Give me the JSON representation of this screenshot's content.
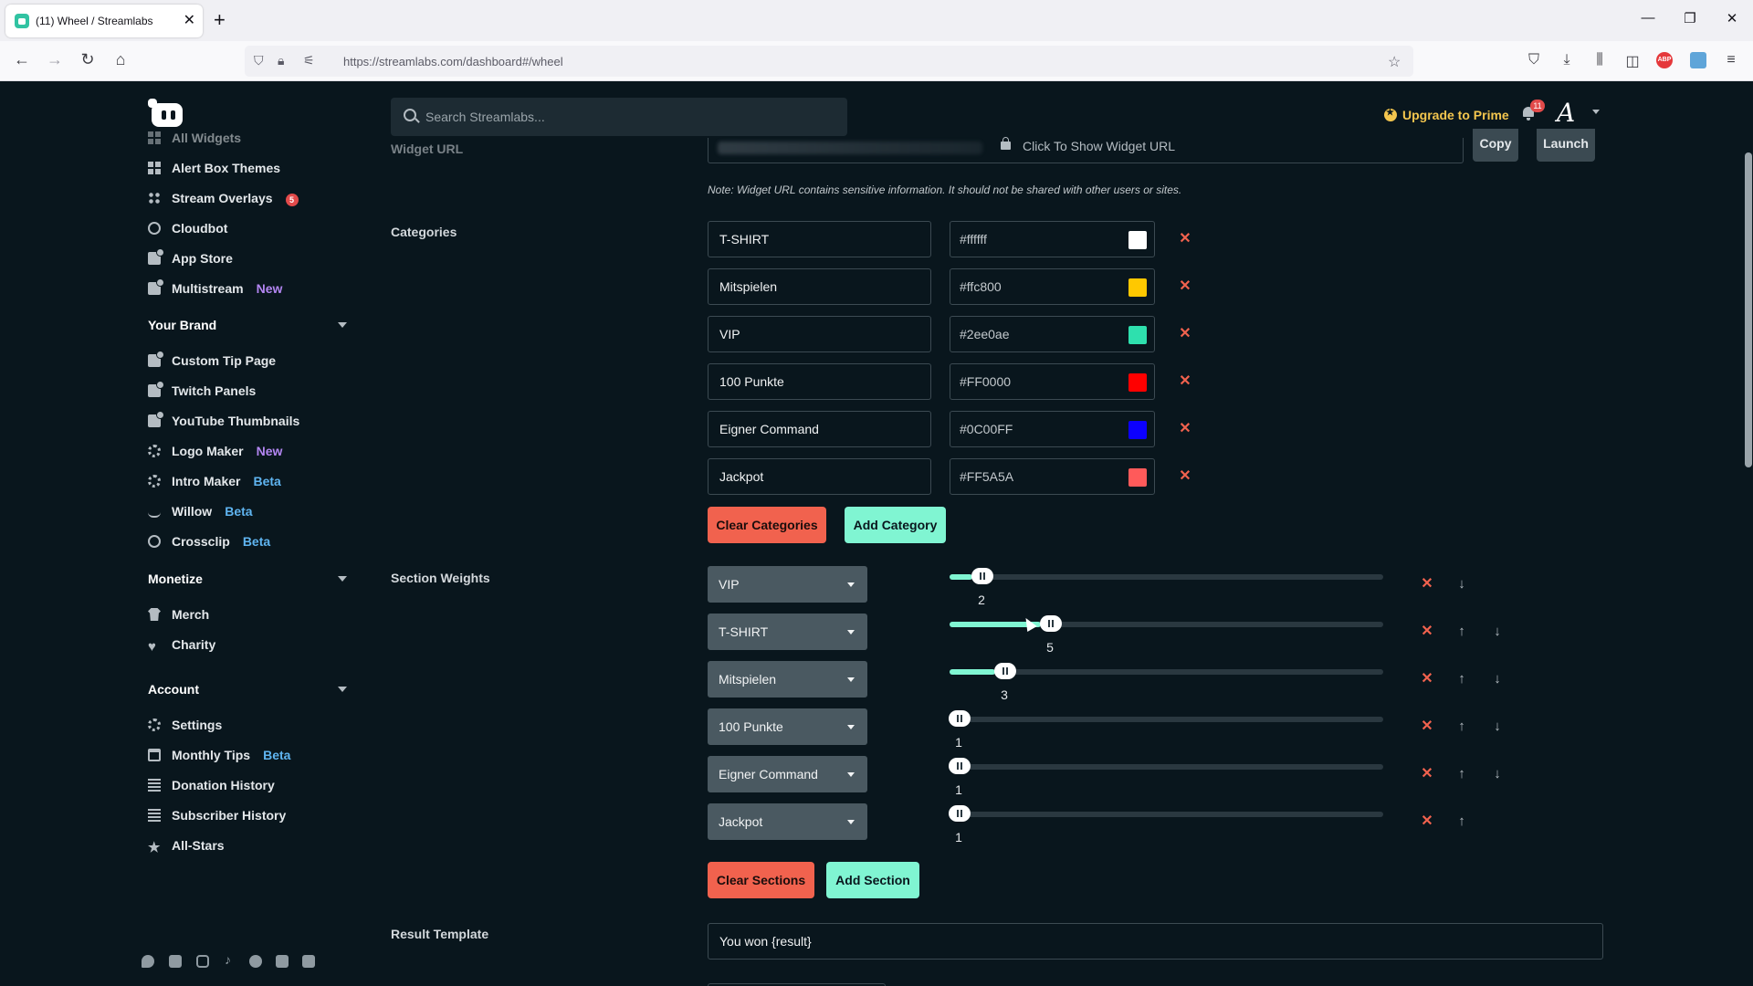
{
  "browser": {
    "tab_title": "(11) Wheel / Streamlabs",
    "url": "https://streamlabs.com/dashboard#/wheel"
  },
  "header": {
    "search_placeholder": "Search Streamlabs...",
    "upgrade_label": "Upgrade to Prime",
    "notifications_count": "11",
    "avatar_letter": "A"
  },
  "sidebar": {
    "items": [
      {
        "label": "All Widgets",
        "icon": "grid-icon"
      },
      {
        "label": "Alert Box Themes",
        "icon": "grid-icon"
      },
      {
        "label": "Stream Overlays",
        "icon": "overlay-icon",
        "badge": "5"
      },
      {
        "label": "Cloudbot",
        "icon": "cloudbot-icon"
      },
      {
        "label": "App Store",
        "icon": "app-store-icon"
      },
      {
        "label": "Multistream",
        "icon": "multistream-icon",
        "tag": "New"
      }
    ],
    "brand": {
      "title": "Your Brand",
      "items": [
        {
          "label": "Custom Tip Page"
        },
        {
          "label": "Twitch Panels"
        },
        {
          "label": "YouTube Thumbnails"
        },
        {
          "label": "Logo Maker",
          "tag": "New"
        },
        {
          "label": "Intro Maker",
          "tag": "Beta"
        },
        {
          "label": "Willow",
          "tag": "Beta"
        },
        {
          "label": "Crossclip",
          "tag": "Beta"
        }
      ]
    },
    "monetize": {
      "title": "Monetize",
      "items": [
        {
          "label": "Merch"
        },
        {
          "label": "Charity"
        }
      ]
    },
    "account": {
      "title": "Account",
      "items": [
        {
          "label": "Settings"
        },
        {
          "label": "Monthly Tips",
          "tag": "Beta"
        },
        {
          "label": "Donation History"
        },
        {
          "label": "Subscriber History"
        },
        {
          "label": "All-Stars"
        }
      ]
    },
    "social_icons": [
      "twitter-icon",
      "youtube-icon",
      "instagram-icon",
      "tiktok-icon",
      "facebook-icon",
      "linkedin-icon",
      "discord-icon"
    ]
  },
  "widget_url": {
    "label": "Widget URL",
    "show_label": "Click To Show Widget URL",
    "copy_label": "Copy",
    "launch_label": "Launch",
    "note": "Note: Widget URL contains sensitive information. It should not be shared with other users or sites."
  },
  "categories": {
    "label": "Categories",
    "items": [
      {
        "name": "T-SHIRT",
        "color": "#ffffff"
      },
      {
        "name": "Mitspielen",
        "color": "#ffc800"
      },
      {
        "name": "VIP",
        "color": "#2ee0ae"
      },
      {
        "name": "100 Punkte",
        "color": "#FF0000"
      },
      {
        "name": "Eigner Command",
        "color": "#0C00FF"
      },
      {
        "name": "Jackpot",
        "color": "#FF5A5A"
      }
    ],
    "clear_label": "Clear Categories",
    "add_label": "Add Category"
  },
  "sections": {
    "label": "Section Weights",
    "max_weight": 20,
    "items": [
      {
        "category": "VIP",
        "weight": 2
      },
      {
        "category": "T-SHIRT",
        "weight": 5
      },
      {
        "category": "Mitspielen",
        "weight": 3
      },
      {
        "category": "100 Punkte",
        "weight": 1
      },
      {
        "category": "Eigner Command",
        "weight": 1
      },
      {
        "category": "Jackpot",
        "weight": 1
      }
    ],
    "clear_label": "Clear Sections",
    "add_label": "Add Section"
  },
  "result_template": {
    "label": "Result Template",
    "value": "You won {result}"
  },
  "colors": {
    "accent": "#80f5d2",
    "danger": "#f1624e",
    "background": "#09161d"
  }
}
